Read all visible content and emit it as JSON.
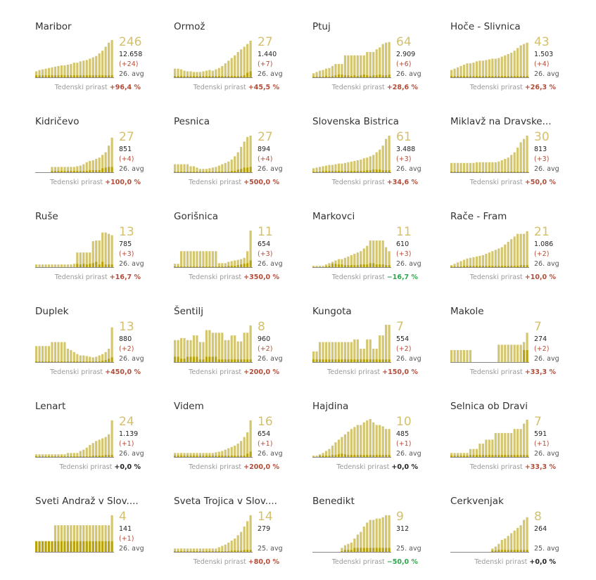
{
  "labels": {
    "growth_label": "Tedenski prirast"
  },
  "colors": {
    "bar_total": "#d4c66e",
    "bar_new": "#b9a30c",
    "axis": "#888888",
    "up": "#b24d3a",
    "down": "#2aa84a",
    "neutral": "#222222"
  },
  "chart_data": [
    {
      "type": "bar",
      "title": "Maribor",
      "big": "246",
      "cum": "12.658",
      "delta": "(+24)",
      "date": "26. avg",
      "growth": "+96,4 %",
      "trend": "up",
      "total": [
        9,
        11,
        12,
        13,
        14,
        15,
        16,
        17,
        18,
        18,
        19,
        20,
        22,
        22,
        24,
        25,
        26,
        28,
        30,
        32,
        36,
        40,
        46,
        52,
        56
      ],
      "new": [
        3,
        3,
        3,
        3,
        3,
        3,
        3,
        3,
        3,
        3,
        3,
        3,
        3,
        3,
        3,
        3,
        3,
        3,
        3,
        3,
        3,
        3,
        3,
        3,
        3
      ]
    },
    {
      "type": "bar",
      "title": "Ormož",
      "big": "27",
      "cum": "1.440",
      "delta": "(+7)",
      "date": "26. avg",
      "growth": "+45,5 %",
      "trend": "up",
      "total": [
        13,
        13,
        12,
        10,
        9,
        9,
        8,
        8,
        8,
        9,
        10,
        11,
        10,
        12,
        14,
        17,
        21,
        25,
        29,
        33,
        38,
        42,
        46,
        50,
        55
      ],
      "new": [
        2,
        2,
        2,
        2,
        2,
        2,
        2,
        2,
        2,
        2,
        2,
        2,
        2,
        2,
        2,
        2,
        2,
        2,
        2,
        2,
        2,
        2,
        3,
        7,
        9
      ]
    },
    {
      "type": "bar",
      "title": "Ptuj",
      "big": "64",
      "cum": "2.909",
      "delta": "(+6)",
      "date": "26. avg",
      "growth": "+28,6 %",
      "trend": "up",
      "total": [
        6,
        8,
        10,
        11,
        13,
        14,
        17,
        20,
        20,
        20,
        33,
        33,
        33,
        33,
        33,
        33,
        33,
        38,
        38,
        38,
        42,
        45,
        50,
        52,
        53
      ],
      "new": [
        1,
        1,
        1,
        1,
        2,
        1,
        2,
        3,
        4,
        4,
        3,
        3,
        2,
        3,
        2,
        3,
        4,
        3,
        2,
        3,
        3,
        4,
        3,
        3,
        4
      ]
    },
    {
      "type": "bar",
      "title": "Hoče - Slivnica",
      "big": "43",
      "cum": "1.503",
      "delta": "(+4)",
      "date": "26. avg",
      "growth": "+26,3 %",
      "trend": "up",
      "total": [
        11,
        13,
        15,
        17,
        19,
        21,
        21,
        22,
        24,
        25,
        25,
        26,
        27,
        28,
        28,
        29,
        31,
        33,
        35,
        37,
        40,
        44,
        48,
        50,
        52
      ],
      "new": [
        2,
        2,
        2,
        2,
        2,
        2,
        2,
        2,
        2,
        2,
        2,
        2,
        2,
        2,
        2,
        2,
        2,
        2,
        2,
        2,
        2,
        2,
        2,
        2,
        2
      ]
    },
    {
      "type": "bar",
      "title": "Kidričevo",
      "big": "27",
      "cum": "851",
      "delta": "(+4)",
      "date": "26. avg",
      "growth": "+100,0 %",
      "trend": "up",
      "total": [
        0,
        0,
        0,
        0,
        0,
        8,
        8,
        8,
        8,
        8,
        8,
        8,
        8,
        9,
        10,
        12,
        15,
        17,
        18,
        20,
        22,
        26,
        30,
        40,
        52
      ],
      "new": [
        0,
        0,
        0,
        0,
        0,
        2,
        2,
        2,
        2,
        2,
        2,
        2,
        2,
        2,
        2,
        2,
        2,
        3,
        3,
        3,
        3,
        6,
        7,
        8,
        8
      ]
    },
    {
      "type": "bar",
      "title": "Pesnica",
      "big": "27",
      "cum": "894",
      "delta": "(+4)",
      "date": "26. avg",
      "growth": "+500,0 %",
      "trend": "up",
      "total": [
        12,
        12,
        12,
        12,
        12,
        9,
        9,
        7,
        5,
        5,
        5,
        6,
        7,
        8,
        10,
        12,
        14,
        16,
        19,
        24,
        30,
        38,
        46,
        53,
        55
      ],
      "new": [
        1,
        1,
        1,
        1,
        1,
        1,
        1,
        1,
        1,
        1,
        1,
        1,
        1,
        1,
        1,
        1,
        1,
        1,
        2,
        2,
        4,
        5,
        7,
        7,
        8
      ]
    },
    {
      "type": "bar",
      "title": "Slovenska Bistrica",
      "big": "61",
      "cum": "3.488",
      "delta": "(+3)",
      "date": "26. avg",
      "growth": "+34,6 %",
      "trend": "up",
      "total": [
        6,
        7,
        8,
        9,
        10,
        11,
        11,
        12,
        13,
        13,
        14,
        15,
        16,
        17,
        18,
        19,
        21,
        22,
        24,
        26,
        30,
        34,
        40,
        50,
        55
      ],
      "new": [
        1,
        1,
        1,
        2,
        2,
        2,
        2,
        2,
        2,
        2,
        2,
        2,
        2,
        2,
        2,
        2,
        2,
        3,
        3,
        4,
        4,
        4,
        3,
        3,
        3
      ]
    },
    {
      "type": "bar",
      "title": "Miklavž na Dravske...",
      "big": "30",
      "cum": "813",
      "delta": "(+3)",
      "date": "26. avg",
      "growth": "+50,0 %",
      "trend": "up",
      "total": [
        14,
        14,
        14,
        14,
        14,
        14,
        14,
        14,
        15,
        15,
        15,
        15,
        15,
        15,
        15,
        16,
        18,
        20,
        22,
        26,
        30,
        37,
        45,
        50,
        55
      ],
      "new": [
        1,
        1,
        1,
        1,
        1,
        1,
        1,
        1,
        1,
        1,
        1,
        1,
        1,
        1,
        1,
        1,
        1,
        1,
        1,
        1,
        1,
        1,
        1,
        1,
        1
      ]
    },
    {
      "type": "bar",
      "title": "Ruše",
      "big": "13",
      "cum": "785",
      "delta": "(+3)",
      "date": "26. avg",
      "growth": "+16,7 %",
      "trend": "up",
      "total": [
        4,
        4,
        4,
        4,
        4,
        4,
        4,
        4,
        4,
        4,
        4,
        4,
        5,
        22,
        22,
        22,
        22,
        22,
        39,
        40,
        40,
        52,
        52,
        50,
        48
      ],
      "new": [
        0,
        0,
        0,
        0,
        0,
        0,
        0,
        0,
        0,
        0,
        0,
        0,
        0,
        5,
        4,
        5,
        4,
        5,
        6,
        8,
        4,
        8,
        4,
        4,
        4
      ]
    },
    {
      "type": "bar",
      "title": "Gorišnica",
      "big": "11",
      "cum": "654",
      "delta": "(+3)",
      "date": "26. avg",
      "growth": "+350,0 %",
      "trend": "up",
      "total": [
        5,
        5,
        24,
        24,
        24,
        24,
        24,
        24,
        24,
        24,
        24,
        24,
        24,
        24,
        6,
        6,
        6,
        8,
        9,
        10,
        11,
        12,
        14,
        24,
        55
      ],
      "new": [
        1,
        1,
        1,
        1,
        1,
        1,
        1,
        1,
        1,
        1,
        1,
        1,
        1,
        1,
        1,
        1,
        1,
        2,
        2,
        2,
        3,
        4,
        5,
        6,
        10
      ]
    },
    {
      "type": "bar",
      "title": "Markovci",
      "big": "11",
      "cum": "610",
      "delta": "(+3)",
      "date": "26. avg",
      "growth": "−16,7 %",
      "trend": "down",
      "total": [
        2,
        2,
        2,
        2,
        4,
        6,
        8,
        10,
        12,
        12,
        14,
        16,
        18,
        20,
        22,
        24,
        28,
        32,
        40,
        40,
        40,
        40,
        40,
        30,
        24
      ],
      "new": [
        0,
        0,
        0,
        0,
        1,
        2,
        5,
        5,
        4,
        4,
        3,
        3,
        3,
        3,
        3,
        4,
        4,
        4,
        6,
        6,
        4,
        4,
        4,
        3,
        3
      ]
    },
    {
      "type": "bar",
      "title": "Rače - Fram",
      "big": "21",
      "cum": "1.086",
      "delta": "(+2)",
      "date": "26. avg",
      "growth": "+10,0 %",
      "trend": "up",
      "total": [
        3,
        5,
        7,
        9,
        11,
        13,
        14,
        15,
        16,
        17,
        18,
        20,
        22,
        24,
        26,
        28,
        30,
        34,
        38,
        42,
        46,
        50,
        50,
        50,
        54
      ],
      "new": [
        1,
        1,
        1,
        1,
        2,
        2,
        2,
        2,
        2,
        2,
        2,
        2,
        2,
        2,
        2,
        2,
        2,
        2,
        2,
        2,
        2,
        2,
        3,
        3,
        3
      ]
    },
    {
      "type": "bar",
      "title": "Duplek",
      "big": "13",
      "cum": "880",
      "delta": "(+2)",
      "date": "26. avg",
      "growth": "+450,0 %",
      "trend": "up",
      "total": [
        24,
        24,
        24,
        24,
        24,
        30,
        30,
        30,
        30,
        30,
        20,
        18,
        15,
        12,
        10,
        10,
        9,
        8,
        7,
        8,
        10,
        12,
        15,
        20,
        52
      ],
      "new": [
        1,
        1,
        1,
        1,
        1,
        1,
        1,
        1,
        1,
        1,
        1,
        1,
        1,
        1,
        1,
        1,
        1,
        1,
        1,
        1,
        1,
        2,
        3,
        5,
        7
      ]
    },
    {
      "type": "bar",
      "title": "Šentilj",
      "big": "8",
      "cum": "960",
      "delta": "(+2)",
      "date": "26. avg",
      "growth": "+200,0 %",
      "trend": "up",
      "total": [
        33,
        33,
        36,
        36,
        33,
        33,
        40,
        40,
        30,
        30,
        48,
        48,
        44,
        44,
        44,
        44,
        33,
        33,
        40,
        40,
        31,
        31,
        44,
        44,
        55
      ],
      "new": [
        8,
        8,
        5,
        5,
        8,
        8,
        8,
        8,
        4,
        4,
        8,
        8,
        8,
        8,
        4,
        4,
        4,
        4,
        4,
        4,
        4,
        4,
        4,
        4,
        4
      ]
    },
    {
      "type": "bar",
      "title": "Kungota",
      "big": "7",
      "cum": "554",
      "delta": "(+2)",
      "date": "26. avg",
      "growth": "+150,0 %",
      "trend": "up",
      "total": [
        16,
        16,
        30,
        30,
        30,
        30,
        30,
        30,
        30,
        30,
        30,
        30,
        30,
        34,
        34,
        20,
        20,
        34,
        34,
        20,
        20,
        40,
        40,
        56,
        56
      ],
      "new": [
        4,
        4,
        4,
        4,
        4,
        4,
        4,
        4,
        4,
        4,
        4,
        4,
        4,
        4,
        4,
        4,
        4,
        4,
        4,
        4,
        4,
        4,
        4,
        4,
        4
      ]
    },
    {
      "type": "bar",
      "title": "Makole",
      "big": "7",
      "cum": "274",
      "delta": "(+2)",
      "date": "26. avg",
      "growth": "+33,3 %",
      "trend": "up",
      "total": [
        18,
        18,
        18,
        18,
        18,
        18,
        18,
        0,
        0,
        0,
        0,
        0,
        0,
        0,
        0,
        26,
        26,
        26,
        26,
        26,
        26,
        26,
        26,
        30,
        44
      ],
      "new": [
        0,
        0,
        0,
        0,
        0,
        0,
        0,
        0,
        0,
        0,
        0,
        0,
        0,
        0,
        0,
        0,
        0,
        0,
        0,
        0,
        0,
        0,
        0,
        18,
        18
      ]
    },
    {
      "type": "bar",
      "title": "Lenart",
      "big": "24",
      "cum": "1.139",
      "delta": "(+1)",
      "date": "26. avg",
      "growth": "+0,0 %",
      "trend": "neutral",
      "total": [
        4,
        4,
        4,
        4,
        4,
        4,
        4,
        4,
        4,
        4,
        6,
        6,
        6,
        6,
        9,
        11,
        14,
        18,
        21,
        24,
        26,
        28,
        30,
        34,
        55
      ],
      "new": [
        1,
        1,
        1,
        1,
        1,
        1,
        1,
        1,
        1,
        1,
        1,
        1,
        1,
        1,
        1,
        1,
        1,
        1,
        2,
        2,
        2,
        2,
        3,
        3,
        3
      ]
    },
    {
      "type": "bar",
      "title": "Videm",
      "big": "16",
      "cum": "654",
      "delta": "(+1)",
      "date": "26. avg",
      "growth": "+200,0 %",
      "trend": "up",
      "total": [
        6,
        6,
        6,
        6,
        6,
        6,
        6,
        6,
        6,
        6,
        6,
        6,
        6,
        7,
        8,
        9,
        11,
        13,
        15,
        17,
        20,
        24,
        30,
        37,
        55
      ],
      "new": [
        2,
        2,
        2,
        2,
        2,
        2,
        2,
        2,
        2,
        2,
        2,
        2,
        2,
        2,
        2,
        2,
        2,
        2,
        2,
        2,
        2,
        2,
        2,
        5,
        8
      ]
    },
    {
      "type": "bar",
      "title": "Hajdina",
      "big": "10",
      "cum": "485",
      "delta": "(+1)",
      "date": "26. avg",
      "growth": "+0,0 %",
      "trend": "neutral",
      "total": [
        2,
        2,
        4,
        6,
        9,
        12,
        17,
        22,
        26,
        30,
        34,
        38,
        42,
        45,
        48,
        48,
        52,
        55,
        57,
        52,
        48,
        48,
        46,
        42,
        42
      ],
      "new": [
        0,
        0,
        2,
        2,
        2,
        2,
        3,
        3,
        4,
        5,
        4,
        3,
        3,
        3,
        3,
        3,
        3,
        3,
        3,
        3,
        3,
        3,
        3,
        3,
        3
      ]
    },
    {
      "type": "bar",
      "title": "Selnica ob Dravi",
      "big": "7",
      "cum": "591",
      "delta": "(+1)",
      "date": "26. avg",
      "growth": "+33,3 %",
      "trend": "up",
      "total": [
        6,
        6,
        6,
        6,
        6,
        6,
        12,
        12,
        12,
        20,
        20,
        26,
        26,
        26,
        36,
        36,
        36,
        36,
        36,
        36,
        42,
        42,
        42,
        50,
        56
      ],
      "new": [
        2,
        2,
        2,
        2,
        2,
        2,
        3,
        3,
        3,
        3,
        3,
        3,
        3,
        3,
        3,
        3,
        3,
        3,
        3,
        3,
        3,
        3,
        3,
        3,
        3
      ]
    },
    {
      "type": "bar",
      "title": "Sveti Andraž v Slov....",
      "big": "4",
      "cum": "141",
      "delta": "(+1)",
      "date": "26. avg",
      "growth": "",
      "trend": "neutral",
      "total": [
        16,
        16,
        16,
        16,
        16,
        16,
        40,
        40,
        40,
        40,
        40,
        40,
        40,
        40,
        40,
        40,
        40,
        40,
        40,
        40,
        40,
        40,
        40,
        40,
        55
      ],
      "new": [
        16,
        16,
        16,
        16,
        16,
        16,
        16,
        16,
        16,
        16,
        16,
        16,
        16,
        16,
        16,
        16,
        16,
        16,
        16,
        16,
        16,
        16,
        16,
        16,
        16
      ]
    },
    {
      "type": "bar",
      "title": "Sveta Trojica v Slov....",
      "big": "14",
      "cum": "279",
      "delta": "",
      "date": "25. avg",
      "growth": "+80,0 %",
      "trend": "up",
      "total": [
        5,
        5,
        5,
        5,
        5,
        5,
        5,
        5,
        5,
        5,
        5,
        5,
        5,
        5,
        7,
        9,
        11,
        14,
        17,
        20,
        25,
        30,
        38,
        46,
        55
      ],
      "new": [
        1,
        1,
        1,
        1,
        1,
        1,
        1,
        1,
        1,
        1,
        1,
        1,
        1,
        1,
        1,
        1,
        1,
        1,
        2,
        2,
        2,
        2,
        3,
        3,
        3
      ]
    },
    {
      "type": "bar",
      "title": "Benedikt",
      "big": "9",
      "cum": "312",
      "delta": "",
      "date": "25. avg",
      "growth": "−50,0 %",
      "trend": "down",
      "total": [
        0,
        0,
        0,
        0,
        0,
        0,
        0,
        0,
        0,
        6,
        10,
        12,
        14,
        20,
        26,
        30,
        38,
        44,
        48,
        48,
        50,
        50,
        52,
        55,
        55
      ],
      "new": [
        0,
        0,
        0,
        0,
        0,
        0,
        0,
        0,
        0,
        1,
        3,
        3,
        3,
        6,
        6,
        6,
        6,
        6,
        6,
        6,
        6,
        6,
        6,
        6,
        6
      ]
    },
    {
      "type": "bar",
      "title": "Cerkvenjak",
      "big": "8",
      "cum": "264",
      "delta": "",
      "date": "25. avg",
      "growth": "+0,0 %",
      "trend": "neutral",
      "total": [
        0,
        0,
        0,
        0,
        0,
        0,
        0,
        0,
        0,
        0,
        0,
        0,
        0,
        5,
        8,
        12,
        18,
        20,
        24,
        28,
        32,
        36,
        40,
        48,
        52
      ],
      "new": [
        0,
        0,
        0,
        0,
        0,
        0,
        0,
        0,
        0,
        0,
        0,
        0,
        0,
        2,
        2,
        3,
        3,
        3,
        3,
        3,
        3,
        3,
        3,
        3,
        3
      ]
    }
  ]
}
